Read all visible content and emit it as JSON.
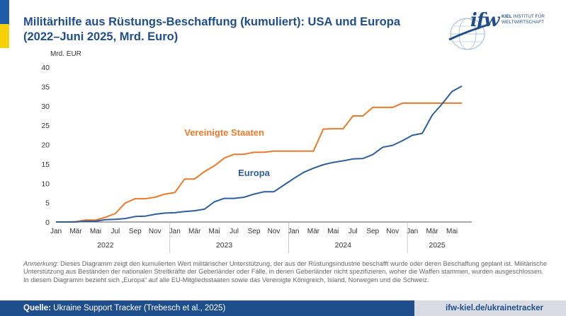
{
  "header": {
    "title_line1": "Militärhilfe aus Rüstungs-Beschaffung (kumuliert): USA und Europa",
    "title_line2": "(2022–Juni 2025, Mrd. Euro)"
  },
  "logo": {
    "word": "ifw",
    "line1_bold": "KIEL",
    "line1_rest": " INSTITUT FÜR",
    "line2": "WELTWIRTSCHAFT"
  },
  "colors": {
    "usa": "#e97a2b",
    "europe": "#2e5e9e",
    "title": "#1f4e8c",
    "axis": "#333333",
    "grid": "#e6e6e6"
  },
  "chart_data": {
    "type": "line",
    "title": "Militärhilfe aus Rüstungs-Beschaffung (kumuliert): USA und Europa",
    "ylabel": "Mrd. EUR",
    "xlabel": "",
    "ylim": [
      0,
      40
    ],
    "yticks": [
      0,
      5,
      10,
      15,
      20,
      25,
      30,
      35,
      40
    ],
    "x_start": "2022-01",
    "x_months": 42,
    "x_ticks": [
      {
        "m": 0,
        "label": "Jan"
      },
      {
        "m": 2,
        "label": "Mär"
      },
      {
        "m": 4,
        "label": "Mai"
      },
      {
        "m": 6,
        "label": "Jul"
      },
      {
        "m": 8,
        "label": "Sep"
      },
      {
        "m": 10,
        "label": "Nov"
      },
      {
        "m": 12,
        "label": "Jan"
      },
      {
        "m": 14,
        "label": "Mär"
      },
      {
        "m": 16,
        "label": "Mai"
      },
      {
        "m": 18,
        "label": "Jul"
      },
      {
        "m": 20,
        "label": "Sep"
      },
      {
        "m": 22,
        "label": "Nov"
      },
      {
        "m": 24,
        "label": "Jan"
      },
      {
        "m": 26,
        "label": "Mär"
      },
      {
        "m": 28,
        "label": "Mai"
      },
      {
        "m": 30,
        "label": "Jul"
      },
      {
        "m": 32,
        "label": "Sep"
      },
      {
        "m": 34,
        "label": "Nov"
      },
      {
        "m": 36,
        "label": "Jan"
      },
      {
        "m": 38,
        "label": "Mär"
      },
      {
        "m": 40,
        "label": "Mai"
      }
    ],
    "year_labels": [
      {
        "m": 5,
        "label": "2022"
      },
      {
        "m": 17,
        "label": "2023"
      },
      {
        "m": 29,
        "label": "2024"
      },
      {
        "m": 38.5,
        "label": "2025"
      }
    ],
    "series": [
      {
        "name": "Vereinigte Staaten",
        "label_at": {
          "m": 17,
          "y": 22.3
        },
        "points": [
          [
            0,
            0
          ],
          [
            1,
            0
          ],
          [
            2,
            0.1
          ],
          [
            3,
            0.5
          ],
          [
            4,
            0.5
          ],
          [
            5,
            1.2
          ],
          [
            6,
            2.2
          ],
          [
            7,
            4.9
          ],
          [
            8,
            6.0
          ],
          [
            9,
            6.0
          ],
          [
            10,
            6.4
          ],
          [
            11,
            7.2
          ],
          [
            12,
            7.6
          ],
          [
            13,
            11.1
          ],
          [
            14,
            11.1
          ],
          [
            15,
            13.0
          ],
          [
            16,
            14.5
          ],
          [
            17,
            16.5
          ],
          [
            18,
            17.5
          ],
          [
            19,
            17.5
          ],
          [
            20,
            18.0
          ],
          [
            21,
            18.0
          ],
          [
            22,
            18.3
          ],
          [
            23,
            18.3
          ],
          [
            24,
            18.3
          ],
          [
            25,
            18.3
          ],
          [
            26,
            18.3
          ],
          [
            27,
            24.0
          ],
          [
            28,
            24.1
          ],
          [
            29,
            24.1
          ],
          [
            30,
            27.4
          ],
          [
            31,
            27.4
          ],
          [
            32,
            29.6
          ],
          [
            33,
            29.6
          ],
          [
            34,
            29.6
          ],
          [
            35,
            30.7
          ],
          [
            36,
            30.7
          ],
          [
            37,
            30.7
          ],
          [
            38,
            30.7
          ],
          [
            39,
            30.7
          ],
          [
            40,
            30.7
          ],
          [
            41,
            30.7
          ]
        ]
      },
      {
        "name": "Europa",
        "label_at": {
          "m": 20,
          "y": 11.9
        },
        "points": [
          [
            0,
            0
          ],
          [
            1,
            0
          ],
          [
            2,
            0
          ],
          [
            3,
            0.2
          ],
          [
            4,
            0.2
          ],
          [
            5,
            0.6
          ],
          [
            6,
            0.7
          ],
          [
            7,
            0.9
          ],
          [
            8,
            1.4
          ],
          [
            9,
            1.5
          ],
          [
            10,
            2.0
          ],
          [
            11,
            2.3
          ],
          [
            12,
            2.4
          ],
          [
            13,
            2.7
          ],
          [
            14,
            2.9
          ],
          [
            15,
            3.3
          ],
          [
            16,
            5.2
          ],
          [
            17,
            6.1
          ],
          [
            18,
            6.1
          ],
          [
            19,
            6.4
          ],
          [
            20,
            7.2
          ],
          [
            21,
            7.8
          ],
          [
            22,
            7.8
          ],
          [
            23,
            9.5
          ],
          [
            24,
            11.2
          ],
          [
            25,
            12.8
          ],
          [
            26,
            13.9
          ],
          [
            27,
            14.8
          ],
          [
            28,
            15.4
          ],
          [
            29,
            15.8
          ],
          [
            30,
            16.3
          ],
          [
            31,
            16.4
          ],
          [
            32,
            17.4
          ],
          [
            33,
            19.3
          ],
          [
            34,
            19.8
          ],
          [
            35,
            21.0
          ],
          [
            36,
            22.4
          ],
          [
            37,
            22.9
          ],
          [
            38,
            27.6
          ],
          [
            39,
            30.5
          ],
          [
            40,
            33.7
          ],
          [
            41,
            35.1
          ]
        ]
      }
    ]
  },
  "note": {
    "lead": "Anmerkung:",
    "text": " Dieses Diagramm zeigt den kumulierten Wert militärischer Unterstützung, der aus der Rüstungsindustrie beschafft wurde oder deren Beschaffung geplant ist. Militärische Unterstützung aus Beständen der nationalen Streitkräfte der Geberländer oder Fälle, in denen Geberländer nicht spezifizieren, woher die Waffen stammen, wurden ausgeschlossen. In diesem Diagramm bezieht sich „Europa“ auf alle EU-Mitgliedsstaaten sowie das Vereinigte Königreich, Island, Norwegen und die Schweiz."
  },
  "footer": {
    "source_label": "Quelle:",
    "source_text": " Ukraine Support Tracker (Trebesch et al., 2025)",
    "url": "ifw-kiel.de/ukrainetracker"
  }
}
